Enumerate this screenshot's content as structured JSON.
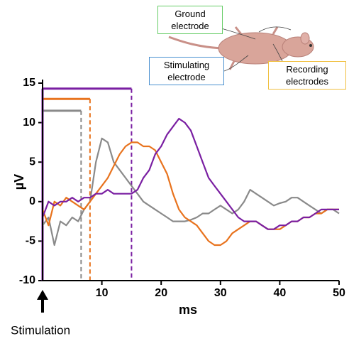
{
  "chart_data": {
    "type": "line",
    "xlabel": "ms",
    "ylabel": "µV",
    "xlim": [
      0,
      50
    ],
    "xticks": [
      10,
      20,
      30,
      40,
      50
    ],
    "ylim": [
      -10,
      15
    ],
    "yticks": [
      -10,
      -5,
      0,
      5,
      10,
      15
    ],
    "x": [
      0,
      1,
      2,
      3,
      4,
      5,
      6,
      7,
      8,
      9,
      10,
      11,
      12,
      13,
      14,
      15,
      16,
      17,
      18,
      19,
      20,
      21,
      22,
      23,
      24,
      25,
      26,
      27,
      28,
      29,
      30,
      31,
      32,
      33,
      34,
      35,
      36,
      37,
      38,
      39,
      40,
      41,
      42,
      43,
      44,
      45,
      46,
      47,
      48,
      49,
      50
    ],
    "series": [
      {
        "color": "#8a8a8a",
        "values": [
          -3,
          -2,
          -5.5,
          -2.5,
          -3,
          -2,
          -2.5,
          -1,
          0,
          5,
          8,
          7.5,
          5,
          4,
          3,
          2,
          1,
          0,
          -0.5,
          -1,
          -1.5,
          -2,
          -2.5,
          -2.5,
          -2.5,
          -2.3,
          -2,
          -1.5,
          -1.5,
          -1,
          -0.5,
          -1,
          -1.5,
          -1,
          0,
          1.5,
          1,
          0.5,
          0,
          -0.5,
          -0.2,
          0,
          0.5,
          0.5,
          0,
          -0.5,
          -1,
          -1.5,
          -1,
          -1,
          -1.5
        ]
      },
      {
        "color": "#e8731e",
        "values": [
          -1,
          -3,
          0,
          -0.5,
          0.5,
          0,
          -0.5,
          -1,
          0,
          1,
          2,
          3,
          4.5,
          6,
          7,
          7.5,
          7.5,
          7,
          7,
          6.5,
          5,
          3.5,
          1,
          -1,
          -2,
          -2.5,
          -3,
          -4,
          -5,
          -5.5,
          -5.5,
          -5,
          -4,
          -3.5,
          -3,
          -2.5,
          -2.5,
          -3,
          -3.5,
          -3.5,
          -3.5,
          -3,
          -2.5,
          -2.5,
          -2,
          -2,
          -1.5,
          -1.5,
          -1,
          -1,
          -1
        ]
      },
      {
        "color": "#7a1fa2",
        "values": [
          -2,
          0,
          -0.5,
          0,
          0,
          0.5,
          0,
          0.5,
          0.5,
          1,
          1,
          1.5,
          1,
          1,
          1,
          1,
          1.5,
          3,
          4,
          6,
          7,
          8.5,
          9.5,
          10.5,
          10,
          9,
          7,
          5,
          3,
          2,
          1,
          0,
          -1,
          -2,
          -2.5,
          -2.5,
          -2.5,
          -3,
          -3.5,
          -3.5,
          -3,
          -3,
          -2.5,
          -2.5,
          -2,
          -2,
          -1.5,
          -1,
          -1,
          -1,
          -1
        ]
      }
    ],
    "stimulus_windows": [
      {
        "color": "#8a8a8a",
        "level": 11.5,
        "end": 6.5
      },
      {
        "color": "#e8731e",
        "level": 13,
        "end": 8
      },
      {
        "color": "#7a1fa2",
        "level": 14.3,
        "end": 15
      }
    ],
    "stimulation_label": "Stimulation",
    "electrode_labels": [
      {
        "text": "Ground electrode",
        "color": "#66cc66"
      },
      {
        "text": "Stimulating electrode",
        "color": "#4a90d0"
      },
      {
        "text": "Recording electrodes",
        "color": "#f0c040"
      }
    ]
  }
}
